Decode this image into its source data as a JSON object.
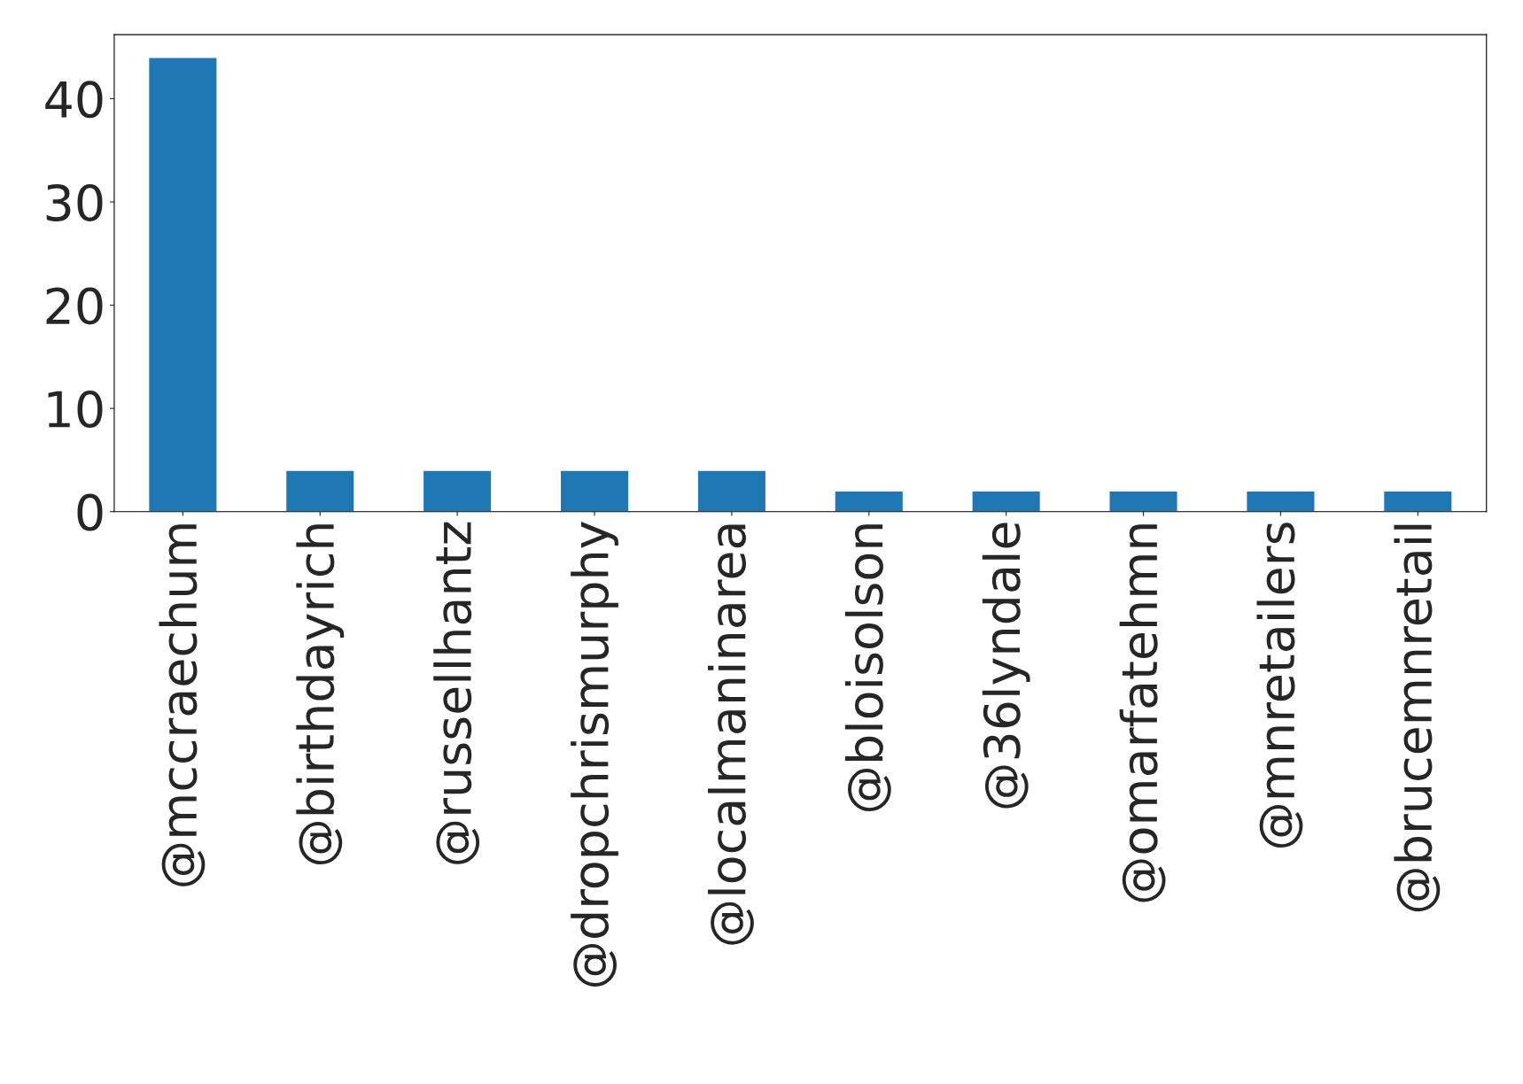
{
  "chart_data": {
    "type": "bar",
    "categories": [
      "@mccraechum",
      "@birthdayrich",
      "@russellhantz",
      "@dropchrismurphy",
      "@localmaninarea",
      "@bloisolson",
      "@36lyndale",
      "@omarfatehmn",
      "@mnretailers",
      "@brucemnretail"
    ],
    "values": [
      44,
      4,
      4,
      4,
      4,
      2,
      2,
      2,
      2,
      2
    ],
    "color": "#1f77b4",
    "ylim": [
      0,
      46.2
    ],
    "yticks": [
      0,
      10,
      20,
      30,
      40
    ],
    "grid": false,
    "legend": false
  }
}
